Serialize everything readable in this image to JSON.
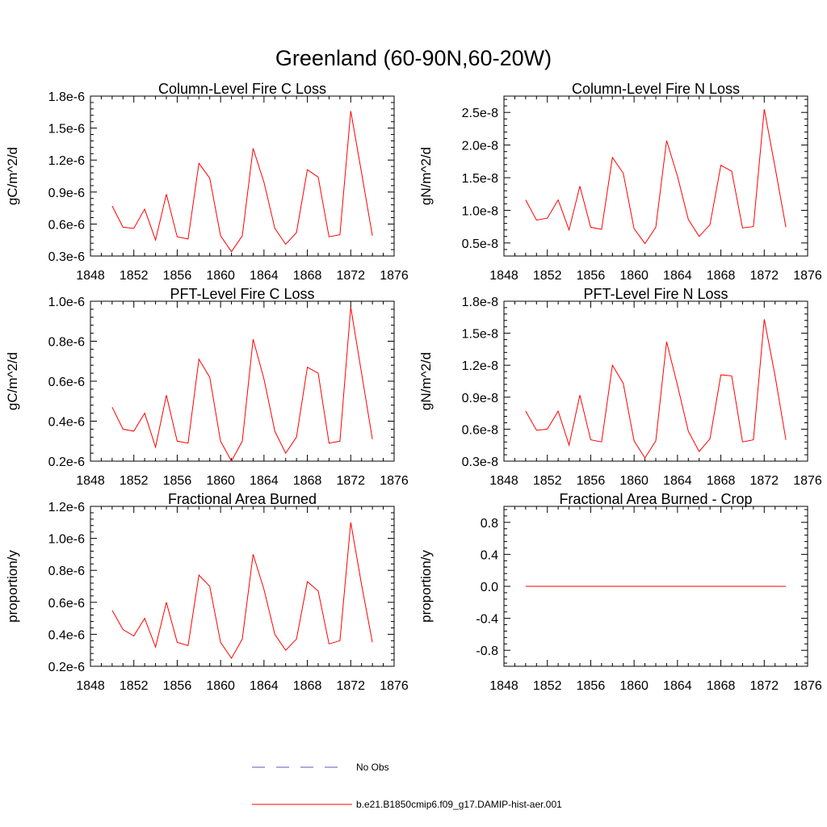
{
  "figure": {
    "title": "Greenland (60-90N,60-20W)",
    "line_color": "#ff0000",
    "obs_color": "#5a5ab4"
  },
  "legend": {
    "items": [
      {
        "label": "No Obs",
        "style": "dashed",
        "color": "#5a5ab4"
      },
      {
        "label": "b.e21.B1850cmip6.f09_g17.DAMIP-hist-aer.001",
        "style": "solid",
        "color": "#ff0000"
      }
    ]
  },
  "chart_data": [
    {
      "type": "line",
      "title": "Column-Level Fire C Loss",
      "ylabel": "gC/m^2/d",
      "xlim": [
        1848,
        1876
      ],
      "x_ticks": [
        "1848",
        "1852",
        "1856",
        "1860",
        "1864",
        "1868",
        "1872",
        "1876"
      ],
      "ylim": [
        0.3,
        1.8
      ],
      "y_ticks": [
        "0.3e-6",
        "0.6e-6",
        "0.9e-6",
        "1.2e-6",
        "1.5e-6",
        "1.8e-6"
      ],
      "y_scale_note": "values in units of 1e-6",
      "grid": false,
      "x": [
        1850,
        1851,
        1852,
        1853,
        1854,
        1855,
        1856,
        1857,
        1858,
        1859,
        1860,
        1861,
        1862,
        1863,
        1864,
        1865,
        1866,
        1867,
        1868,
        1869,
        1870,
        1871,
        1872,
        1873,
        1874
      ],
      "series": [
        {
          "values": [
            0.77,
            0.57,
            0.56,
            0.74,
            0.45,
            0.88,
            0.48,
            0.46,
            1.17,
            1.03,
            0.49,
            0.34,
            0.49,
            1.31,
            0.99,
            0.56,
            0.41,
            0.52,
            1.11,
            1.04,
            0.48,
            0.5,
            1.66,
            1.08,
            0.49
          ]
        }
      ]
    },
    {
      "type": "line",
      "title": "Column-Level Fire N Loss",
      "ylabel": "gN/m^2/d",
      "xlim": [
        1848,
        1876
      ],
      "x_ticks": [
        "1848",
        "1852",
        "1856",
        "1860",
        "1864",
        "1868",
        "1872",
        "1876"
      ],
      "ylim": [
        0.3,
        2.75
      ],
      "y_ticks": [
        "0.5e-8",
        "1.0e-8",
        "1.5e-8",
        "2.0e-8",
        "2.5e-8"
      ],
      "y_tick_values": [
        0.5,
        1.0,
        1.5,
        2.0,
        2.5
      ],
      "y_scale_note": "values in units of 1e-8",
      "grid": false,
      "x": [
        1850,
        1851,
        1852,
        1853,
        1854,
        1855,
        1856,
        1857,
        1858,
        1859,
        1860,
        1861,
        1862,
        1863,
        1864,
        1865,
        1866,
        1867,
        1868,
        1869,
        1870,
        1871,
        1872,
        1873,
        1874
      ],
      "series": [
        {
          "values": [
            1.16,
            0.85,
            0.88,
            1.16,
            0.7,
            1.37,
            0.74,
            0.71,
            1.81,
            1.57,
            0.72,
            0.49,
            0.74,
            2.07,
            1.52,
            0.86,
            0.6,
            0.78,
            1.69,
            1.6,
            0.73,
            0.75,
            2.55,
            1.66,
            0.74
          ]
        }
      ]
    },
    {
      "type": "line",
      "title": "PFT-Level Fire C Loss",
      "ylabel": "gC/m^2/d",
      "xlim": [
        1848,
        1876
      ],
      "x_ticks": [
        "1848",
        "1852",
        "1856",
        "1860",
        "1864",
        "1868",
        "1872",
        "1876"
      ],
      "ylim": [
        0.2,
        1.0
      ],
      "y_ticks": [
        "0.2e-6",
        "0.4e-6",
        "0.6e-6",
        "0.8e-6",
        "1.0e-6"
      ],
      "y_scale_note": "values in units of 1e-6",
      "grid": false,
      "x": [
        1850,
        1851,
        1852,
        1853,
        1854,
        1855,
        1856,
        1857,
        1858,
        1859,
        1860,
        1861,
        1862,
        1863,
        1864,
        1865,
        1866,
        1867,
        1868,
        1869,
        1870,
        1871,
        1872,
        1873,
        1874
      ],
      "series": [
        {
          "values": [
            0.47,
            0.36,
            0.35,
            0.44,
            0.27,
            0.53,
            0.3,
            0.29,
            0.71,
            0.62,
            0.3,
            0.2,
            0.3,
            0.81,
            0.61,
            0.35,
            0.24,
            0.32,
            0.67,
            0.64,
            0.29,
            0.3,
            0.97,
            0.64,
            0.31
          ]
        }
      ]
    },
    {
      "type": "line",
      "title": "PFT-Level Fire N Loss",
      "ylabel": "gN/m^2/d",
      "xlim": [
        1848,
        1876
      ],
      "x_ticks": [
        "1848",
        "1852",
        "1856",
        "1860",
        "1864",
        "1868",
        "1872",
        "1876"
      ],
      "ylim": [
        0.3,
        1.8
      ],
      "y_ticks": [
        "0.3e-8",
        "0.6e-8",
        "0.9e-8",
        "1.2e-8",
        "1.5e-8",
        "1.8e-8"
      ],
      "y_scale_note": "values in units of 1e-8",
      "grid": false,
      "x": [
        1850,
        1851,
        1852,
        1853,
        1854,
        1855,
        1856,
        1857,
        1858,
        1859,
        1860,
        1861,
        1862,
        1863,
        1864,
        1865,
        1866,
        1867,
        1868,
        1869,
        1870,
        1871,
        1872,
        1873,
        1874
      ],
      "series": [
        {
          "values": [
            0.77,
            0.59,
            0.6,
            0.77,
            0.45,
            0.92,
            0.5,
            0.48,
            1.2,
            1.03,
            0.49,
            0.33,
            0.49,
            1.42,
            1.01,
            0.58,
            0.39,
            0.51,
            1.11,
            1.1,
            0.48,
            0.5,
            1.63,
            1.1,
            0.5
          ]
        }
      ]
    },
    {
      "type": "line",
      "title": "Fractional Area Burned",
      "ylabel": "proportion/y",
      "xlim": [
        1848,
        1876
      ],
      "x_ticks": [
        "1848",
        "1852",
        "1856",
        "1860",
        "1864",
        "1868",
        "1872",
        "1876"
      ],
      "ylim": [
        0.2,
        1.2
      ],
      "y_ticks": [
        "0.2e-6",
        "0.4e-6",
        "0.6e-6",
        "0.8e-6",
        "1.0e-6",
        "1.2e-6"
      ],
      "y_scale_note": "values in units of 1e-6",
      "grid": false,
      "x": [
        1850,
        1851,
        1852,
        1853,
        1854,
        1855,
        1856,
        1857,
        1858,
        1859,
        1860,
        1861,
        1862,
        1863,
        1864,
        1865,
        1866,
        1867,
        1868,
        1869,
        1870,
        1871,
        1872,
        1873,
        1874
      ],
      "series": [
        {
          "values": [
            0.55,
            0.43,
            0.39,
            0.5,
            0.32,
            0.6,
            0.35,
            0.33,
            0.77,
            0.7,
            0.35,
            0.25,
            0.37,
            0.9,
            0.68,
            0.4,
            0.3,
            0.37,
            0.73,
            0.67,
            0.34,
            0.36,
            1.1,
            0.71,
            0.35
          ]
        }
      ]
    },
    {
      "type": "line",
      "title": "Fractional Area Burned - Crop",
      "ylabel": "proportion/y",
      "xlim": [
        1848,
        1876
      ],
      "x_ticks": [
        "1848",
        "1852",
        "1856",
        "1860",
        "1864",
        "1868",
        "1872",
        "1876"
      ],
      "ylim": [
        -1.0,
        1.0
      ],
      "y_ticks": [
        "-0.8",
        "-0.4",
        "0.0",
        "0.4",
        "0.8"
      ],
      "y_tick_values": [
        -0.8,
        -0.4,
        0.0,
        0.4,
        0.8
      ],
      "grid": false,
      "x": [
        1850,
        1874
      ],
      "series": [
        {
          "values": [
            0.0,
            0.0
          ]
        }
      ]
    }
  ]
}
